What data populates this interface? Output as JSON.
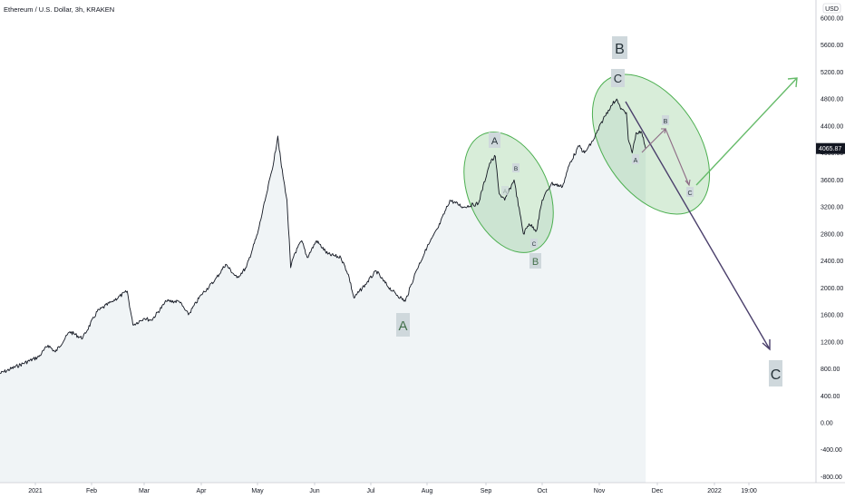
{
  "header": {
    "title": "Ethereum / U.S. Dollar, 3h, KRAKEN"
  },
  "axis": {
    "currency_label": "USD"
  },
  "chart_data": {
    "type": "line",
    "title": "Ethereum / U.S. Dollar, 3h, KRAKEN",
    "xlabel": "",
    "ylabel": "",
    "ylim": [
      -800,
      6200
    ],
    "y_scale": "linear",
    "grid": false,
    "legend": "none",
    "last_price": "4065.87",
    "y_ticks": [
      "6000.00",
      "5600.00",
      "5200.00",
      "4800.00",
      "4400.00",
      "4000.00",
      "3600.00",
      "3200.00",
      "2800.00",
      "2400.00",
      "2000.00",
      "1600.00",
      "1200.00",
      "800.00",
      "400.00",
      "0.00",
      "-400.00",
      "-800.00"
    ],
    "x_ticks": [
      "2021",
      "Feb",
      "Mar",
      "Apr",
      "May",
      "Jun",
      "Jul",
      "Aug",
      "Sep",
      "Oct",
      "Nov",
      "Dec",
      "2022",
      "19:00"
    ],
    "series": [
      {
        "x": [
          "2020-12-28",
          "2021-01-03",
          "2021-01-08",
          "2021-01-12",
          "2021-01-20",
          "2021-01-27",
          "2021-02-04",
          "2021-02-12",
          "2021-02-20",
          "2021-02-23",
          "2021-03-01",
          "2021-03-05",
          "2021-03-13",
          "2021-03-20",
          "2021-03-25",
          "2021-04-01",
          "2021-04-08",
          "2021-04-14",
          "2021-04-20",
          "2021-04-25",
          "2021-05-01",
          "2021-05-06",
          "2021-05-10",
          "2021-05-12",
          "2021-05-14",
          "2021-05-17",
          "2021-05-19",
          "2021-05-21",
          "2021-05-25",
          "2021-05-28",
          "2021-06-02",
          "2021-06-08",
          "2021-06-15",
          "2021-06-19",
          "2021-06-22",
          "2021-06-28",
          "2021-07-04",
          "2021-07-08",
          "2021-07-13",
          "2021-07-20",
          "2021-07-26",
          "2021-08-01",
          "2021-08-07",
          "2021-08-13",
          "2021-08-20",
          "2021-08-28",
          "2021-09-03",
          "2021-09-06",
          "2021-09-08",
          "2021-09-11",
          "2021-09-16",
          "2021-09-21",
          "2021-09-24",
          "2021-09-28",
          "2021-10-01",
          "2021-10-06",
          "2021-10-12",
          "2021-10-16",
          "2021-10-21",
          "2021-10-24",
          "2021-10-29",
          "2021-11-03",
          "2021-11-07",
          "2021-11-10",
          "2021-11-12",
          "2021-11-15",
          "2021-11-16",
          "2021-11-18",
          "2021-11-20",
          "2021-11-23",
          "2021-11-25"
        ],
        "values": [
          730,
          980,
          1150,
          1050,
          1350,
          1250,
          1650,
          1800,
          1950,
          1450,
          1550,
          1520,
          1800,
          1800,
          1600,
          1900,
          2100,
          2350,
          2150,
          2300,
          2800,
          3400,
          3900,
          4250,
          3800,
          3300,
          2300,
          2500,
          2700,
          2450,
          2700,
          2500,
          2450,
          2200,
          1850,
          2050,
          2250,
          2100,
          1950,
          1800,
          2250,
          2600,
          2900,
          3300,
          3200,
          3250,
          3850,
          3950,
          3400,
          3300,
          3600,
          2800,
          2950,
          2850,
          3300,
          3550,
          3500,
          3850,
          4100,
          4000,
          4200,
          4500,
          4700,
          4800,
          4650,
          4600,
          4200,
          4000,
          4300,
          4300,
          4065
        ]
      }
    ]
  },
  "annotations": {
    "wave_A_low": "A",
    "wave_A_high": "A",
    "wave_B_sep": "B",
    "wave_B_top": "B",
    "wave_C_top": "C",
    "wave_C_target": "C",
    "sub_B_sep": "B",
    "sub_A_sep": "A",
    "sub_C_sep": "C",
    "proj_A": "A",
    "proj_B": "B",
    "proj_C": "C"
  },
  "colors": {
    "price_line": "#131722",
    "area_fill": "#f0f4f6",
    "ellipse_fill": "rgba(76,175,80,0.22)",
    "ellipse_stroke": "#4caf50",
    "green_arrow": "#66bb6a",
    "purple_arrow": "#4a3f6b",
    "sub_arrow": "#8e6c86",
    "label_box": "#cfd8dc",
    "label_text_dark": "#263238",
    "label_text_green": "#43704a",
    "price_badge": "#131722"
  }
}
